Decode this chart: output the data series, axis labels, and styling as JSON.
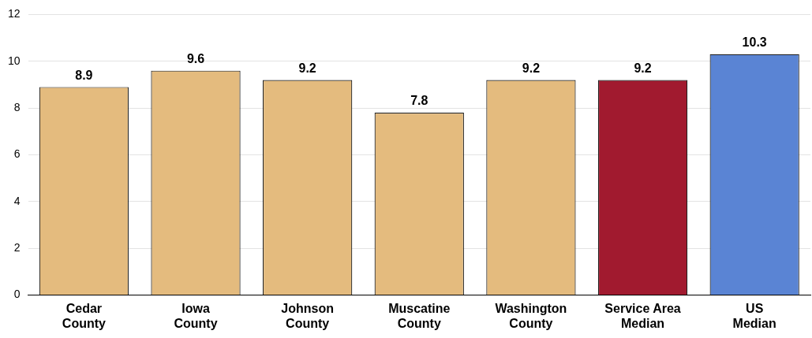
{
  "chart_data": {
    "type": "bar",
    "categories": [
      "Cedar County",
      "Iowa County",
      "Johnson County",
      "Muscatine County",
      "Washington County",
      "Service Area Median",
      "US Median"
    ],
    "values": [
      8.9,
      9.6,
      9.2,
      7.8,
      9.2,
      9.2,
      10.3
    ],
    "colors": [
      "#e4bb7e",
      "#e4bb7e",
      "#e4bb7e",
      "#e4bb7e",
      "#e4bb7e",
      "#a11a2f",
      "#5a84d4"
    ],
    "ylim": [
      0,
      12
    ],
    "yticks": [
      0,
      2,
      4,
      6,
      8,
      10,
      12
    ],
    "grid": "y",
    "data_labels": true,
    "legend": false
  }
}
